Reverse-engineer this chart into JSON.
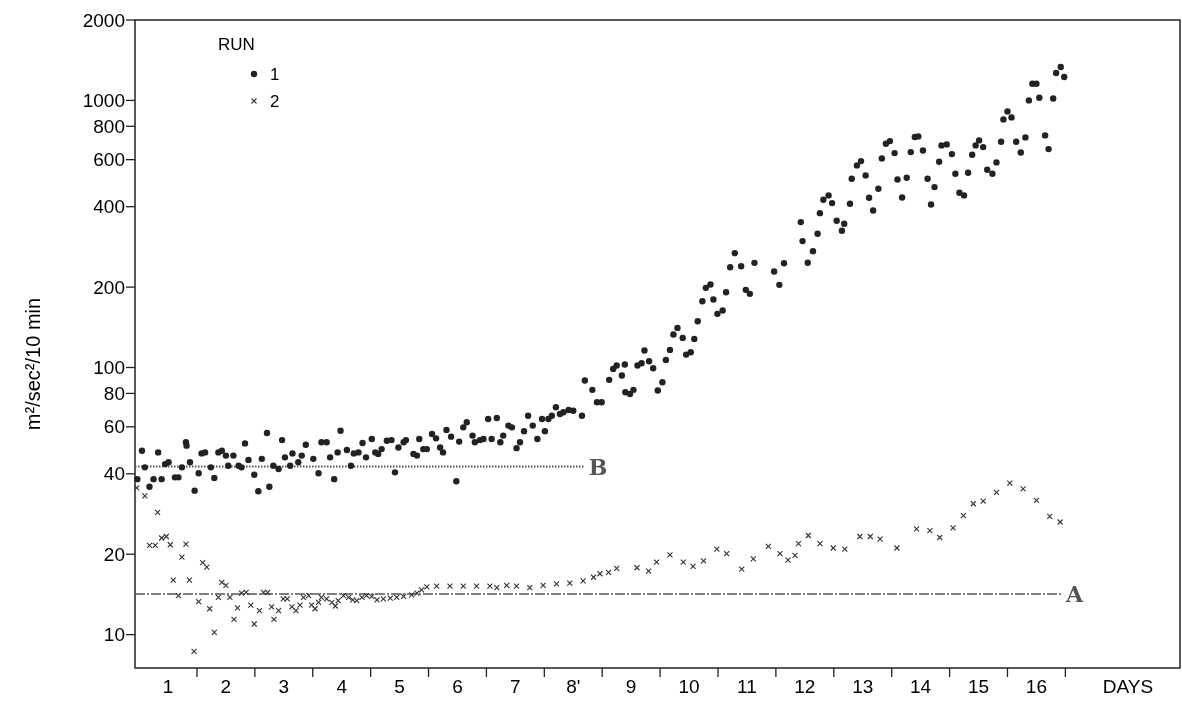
{
  "chart_data": {
    "type": "scatter",
    "ylabel": "m²/sec²/10 min",
    "xlabel": "DAYS",
    "legend_title": "RUN",
    "legend": "top left",
    "log": "y",
    "grid": false,
    "xlim": [
      -0.07,
      17.98
    ],
    "ylim": [
      7.5,
      2000
    ],
    "xticks": [
      {
        "value": 0.5,
        "label": "1"
      },
      {
        "value": 1,
        "label": null
      },
      {
        "value": 1.5,
        "label": "2"
      },
      {
        "value": 2,
        "label": null
      },
      {
        "value": 2.5,
        "label": "3"
      },
      {
        "value": 3,
        "label": null
      },
      {
        "value": 3.5,
        "label": "4"
      },
      {
        "value": 4,
        "label": null
      },
      {
        "value": 4.5,
        "label": "5"
      },
      {
        "value": 5,
        "label": null
      },
      {
        "value": 5.5,
        "label": "6"
      },
      {
        "value": 6,
        "label": null
      },
      {
        "value": 6.5,
        "label": "7"
      },
      {
        "value": 7,
        "label": null
      },
      {
        "value": 7.5,
        "label": "8'"
      },
      {
        "value": 8,
        "label": null
      },
      {
        "value": 8.5,
        "label": "9"
      },
      {
        "value": 9,
        "label": null
      },
      {
        "value": 9.5,
        "label": "10"
      },
      {
        "value": 10,
        "label": null
      },
      {
        "value": 10.5,
        "label": "11"
      },
      {
        "value": 11,
        "label": null
      },
      {
        "value": 11.5,
        "label": "12"
      },
      {
        "value": 12,
        "label": null
      },
      {
        "value": 12.5,
        "label": "13"
      },
      {
        "value": 13,
        "label": null
      },
      {
        "value": 13.5,
        "label": "14"
      },
      {
        "value": 14,
        "label": null
      },
      {
        "value": 14.5,
        "label": "15"
      },
      {
        "value": 15,
        "label": null
      },
      {
        "value": 15.5,
        "label": "16"
      },
      {
        "value": 16,
        "label": null
      }
    ],
    "yticks": [
      10,
      20,
      40,
      60,
      80,
      100,
      200,
      400,
      600,
      800,
      1000,
      2000
    ],
    "series": [
      {
        "name": "1",
        "marker": "circle",
        "color": "#222222",
        "x": [
          -0.03,
          0.05,
          0.1,
          0.18,
          0.25,
          0.33,
          0.39,
          0.45,
          0.51,
          0.62,
          0.68,
          0.74,
          0.81,
          0.82,
          0.88,
          0.96,
          1.03,
          1.08,
          1.14,
          1.24,
          1.3,
          1.37,
          1.43,
          1.5,
          1.54,
          1.63,
          1.72,
          1.77,
          1.83,
          1.89,
          1.99,
          2.06,
          2.12,
          2.21,
          2.25,
          2.32,
          2.41,
          2.47,
          2.52,
          2.61,
          2.65,
          2.75,
          2.81,
          2.88,
          3.01,
          3.1,
          3.15,
          3.24,
          3.3,
          3.37,
          3.43,
          3.48,
          3.59,
          3.66,
          3.71,
          3.79,
          3.86,
          3.92,
          4.02,
          4.08,
          4.13,
          4.19,
          4.28,
          4.36,
          4.42,
          4.48,
          4.57,
          4.61,
          4.74,
          4.8,
          4.84,
          4.91,
          4.97,
          5.06,
          5.13,
          5.2,
          5.25,
          5.31,
          5.39,
          5.48,
          5.53,
          5.6,
          5.66,
          5.76,
          5.8,
          5.89,
          5.95,
          6.03,
          6.09,
          6.18,
          6.24,
          6.29,
          6.38,
          6.44,
          6.52,
          6.58,
          6.65,
          6.72,
          6.8,
          6.88,
          6.96,
          7.01,
          7.07,
          7.13,
          7.2,
          7.27,
          7.33,
          7.42,
          7.5,
          7.65,
          7.7,
          7.83,
          7.91,
          7.99,
          8.12,
          8.19,
          8.25,
          8.34,
          8.39,
          8.4,
          8.48,
          8.54,
          8.61,
          8.68,
          8.73,
          8.81,
          8.88,
          8.96,
          9.04,
          9.1,
          9.17,
          9.23,
          9.3,
          9.39,
          9.45,
          9.53,
          9.59,
          9.65,
          9.73,
          9.79,
          9.87,
          9.92,
          9.99,
          10.08,
          10.14,
          10.21,
          10.29,
          10.4,
          10.48,
          10.55,
          10.63,
          10.97,
          11.06,
          11.14,
          11.43,
          11.46,
          11.55,
          11.64,
          11.72,
          11.76,
          11.82,
          11.91,
          11.97,
          12.05,
          12.14,
          12.18,
          12.28,
          12.31,
          12.4,
          12.47,
          12.55,
          12.61,
          12.68,
          12.77,
          12.83,
          12.9,
          12.97,
          13.05,
          13.1,
          13.18,
          13.26,
          13.33,
          13.4,
          13.46,
          13.54,
          13.62,
          13.68,
          13.74,
          13.82,
          13.86,
          13.95,
          14.04,
          14.1,
          14.17,
          14.25,
          14.32,
          14.39,
          14.45,
          14.51,
          14.58,
          14.65,
          14.74,
          14.81,
          14.89,
          14.93,
          15.0,
          15.07,
          15.15,
          15.23,
          15.31,
          15.37,
          15.43,
          15.5,
          15.55,
          15.65,
          15.71,
          15.79,
          15.84,
          15.92,
          15.98
        ],
        "values": [
          38.2,
          48.8,
          42.3,
          35.8,
          38.2,
          48.1,
          38.2,
          43.5,
          44.2,
          38.8,
          38.8,
          42.3,
          52.5,
          51.0,
          44.2,
          34.6,
          40.2,
          47.7,
          48.1,
          42.3,
          38.6,
          48.1,
          48.8,
          46.8,
          42.9,
          46.8,
          42.9,
          42.3,
          52.0,
          45.1,
          39.7,
          34.4,
          45.5,
          56.9,
          35.8,
          42.9,
          41.7,
          53.5,
          46.1,
          42.9,
          47.7,
          44.2,
          46.8,
          51.4,
          45.5,
          40.2,
          52.5,
          52.5,
          46.1,
          38.2,
          48.1,
          58.0,
          49.1,
          42.9,
          47.7,
          48.1,
          52.2,
          46.1,
          54.0,
          48.1,
          47.5,
          49.5,
          53.2,
          53.5,
          40.5,
          50.2,
          52.5,
          53.5,
          47.5,
          46.8,
          54.0,
          49.5,
          49.5,
          56.4,
          54.3,
          50.2,
          48.1,
          58.4,
          55.1,
          37.5,
          52.8,
          59.7,
          62.4,
          55.6,
          52.5,
          53.5,
          54.0,
          64.2,
          54.0,
          64.7,
          52.5,
          55.6,
          60.6,
          59.7,
          49.9,
          52.5,
          57.7,
          66.0,
          60.6,
          54.0,
          64.2,
          57.7,
          64.2,
          66.0,
          71.0,
          67.0,
          68.0,
          69.3,
          68.9,
          66.0,
          89.4,
          82.5,
          74.1,
          74.1,
          89.9,
          98.8,
          101.7,
          93.3,
          102.6,
          80.8,
          79.6,
          82.5,
          101.7,
          103.8,
          115.8,
          105.6,
          99.4,
          82.0,
          88.1,
          106.8,
          116.4,
          132.9,
          140.7,
          129.1,
          111.8,
          114.1,
          128.0,
          149.0,
          177.1,
          198.7,
          204.5,
          179.7,
          158.8,
          163.4,
          191.4,
          237.4,
          267.9,
          239.5,
          195.3,
          188.7,
          246.5,
          228.8,
          203.9,
          245.8,
          350.3,
          297.3,
          246.6,
          272.7,
          316.7,
          378.4,
          424.6,
          440.9,
          412.6,
          354.3,
          325.0,
          345.2,
          410.2,
          508.9,
          571.0,
          592.7,
          523.8,
          431.9,
          387.3,
          466.9,
          606.5,
          688.2,
          704.2,
          634.9,
          506.0,
          433.2,
          513.3,
          640.4,
          729.0,
          733.2,
          649.6,
          508.9,
          407.9,
          473.7,
          589.3,
          678.5,
          684.3,
          629.5,
          531.4,
          451.0,
          440.9,
          536.1,
          625.9,
          678.5,
          708.3,
          668.6,
          549.9,
          531.4,
          585.9,
          700.2,
          848.9,
          909.6,
          863.7,
          700.2,
          638.6,
          726.9,
          1000,
          1154,
          1154,
          1023,
          739.6,
          657.2,
          1017,
          1266,
          1333,
          1223
        ]
      },
      {
        "name": "2",
        "marker": "cross",
        "color": "#333333",
        "x": [
          -0.04,
          0.1,
          0.32,
          0.18,
          0.28,
          0.39,
          0.47,
          0.54,
          0.59,
          0.68,
          0.74,
          0.81,
          0.87,
          0.95,
          1.03,
          1.1,
          1.17,
          1.22,
          1.3,
          1.37,
          1.43,
          1.5,
          1.57,
          1.64,
          1.7,
          1.77,
          1.85,
          1.93,
          1.99,
          2.08,
          2.15,
          2.22,
          2.29,
          2.33,
          2.41,
          2.49,
          2.56,
          2.64,
          2.71,
          2.78,
          2.84,
          2.93,
          2.98,
          3.04,
          3.1,
          3.15,
          3.24,
          3.33,
          3.39,
          3.44,
          3.53,
          3.62,
          3.69,
          3.76,
          3.85,
          3.93,
          4.02,
          4.11,
          4.22,
          4.34,
          4.45,
          4.57,
          4.71,
          4.8,
          4.88,
          4.97,
          5.14,
          5.37,
          5.6,
          5.83,
          6.06,
          6.18,
          6.35,
          6.52,
          6.75,
          6.98,
          7.21,
          7.44,
          7.67,
          7.85,
          7.96,
          8.11,
          8.25,
          8.6,
          8.8,
          8.94,
          9.17,
          9.4,
          9.57,
          9.75,
          9.98,
          10.15,
          10.41,
          10.61,
          10.87,
          11.07,
          11.21,
          11.33,
          11.39,
          11.56,
          11.76,
          11.99,
          12.19,
          12.45,
          12.63,
          12.8,
          13.09,
          13.43,
          13.66,
          13.83,
          14.06,
          14.24,
          14.41,
          14.58,
          14.81,
          15.04,
          15.27,
          15.5,
          15.73,
          15.91
        ],
        "values": [
          35.4,
          33.1,
          28.7,
          21.6,
          21.6,
          23.0,
          23.3,
          21.7,
          16.0,
          14.0,
          19.5,
          21.8,
          16.0,
          8.65,
          13.3,
          18.6,
          17.9,
          12.5,
          10.2,
          13.8,
          15.7,
          15.3,
          13.8,
          11.4,
          12.6,
          14.3,
          14.4,
          12.9,
          10.96,
          12.3,
          14.4,
          14.4,
          12.7,
          11.4,
          12.3,
          13.6,
          13.6,
          12.7,
          12.3,
          12.9,
          13.8,
          14.0,
          12.9,
          12.5,
          13.2,
          13.8,
          13.6,
          13.2,
          12.8,
          13.4,
          14.0,
          13.8,
          13.5,
          13.4,
          13.8,
          14.0,
          13.9,
          13.5,
          13.6,
          13.7,
          13.8,
          13.9,
          14.1,
          14.3,
          14.7,
          15.1,
          15.2,
          15.2,
          15.2,
          15.2,
          15.2,
          15.0,
          15.3,
          15.2,
          15.0,
          15.3,
          15.5,
          15.6,
          15.9,
          16.4,
          16.9,
          17.1,
          17.7,
          17.8,
          17.3,
          18.7,
          19.9,
          18.7,
          18.0,
          18.9,
          20.9,
          20.1,
          17.6,
          19.2,
          21.4,
          20.1,
          19.0,
          19.8,
          21.9,
          23.5,
          21.9,
          21.1,
          20.9,
          23.3,
          23.3,
          22.8,
          21.1,
          24.9,
          24.5,
          23.1,
          25.1,
          27.9,
          30.9,
          31.6,
          34.1,
          36.9,
          35.1,
          31.8,
          27.7,
          26.4
        ]
      },
      {
        "name": "B",
        "type": "line",
        "line_style": "dotted",
        "color": "#555555",
        "x": [
          -0.07,
          7.7
        ],
        "values": [
          42.6,
          42.6
        ]
      },
      {
        "name": "A",
        "type": "line",
        "line_style": "dashed",
        "color": "#555555",
        "x": [
          -0.07,
          15.94
        ],
        "values": [
          14.2,
          14.2
        ]
      }
    ]
  }
}
